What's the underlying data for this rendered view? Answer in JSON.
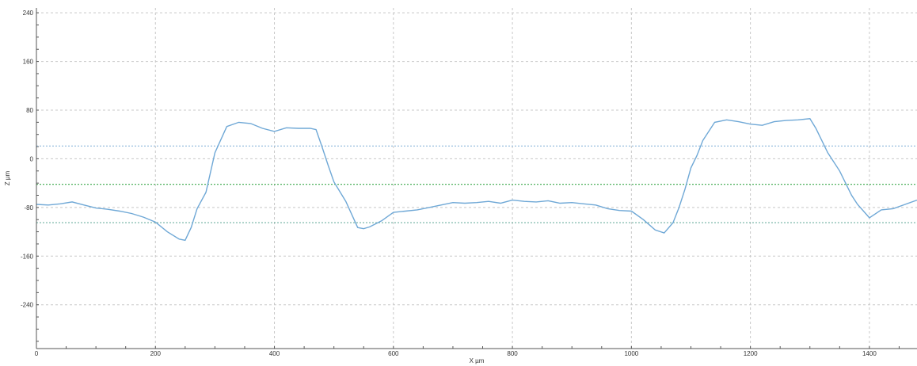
{
  "chart_data": {
    "type": "line",
    "xlabel": "X µm",
    "ylabel": "Z µm",
    "xlim": [
      0,
      1480
    ],
    "ylim": [
      -312,
      248
    ],
    "x_ticks": [
      0,
      200,
      400,
      600,
      800,
      1000,
      1200,
      1400
    ],
    "y_ticks": [
      240,
      160,
      80,
      0,
      -80,
      -160,
      -240
    ],
    "grid": true,
    "colors": {
      "profile": "#6fa8d6",
      "upper_ref": "#8fb8dc",
      "mid_ref": "#3aa84a",
      "lower_ref": "#6fb0a0",
      "grid": "#c8c8c8",
      "axis": "#555555"
    },
    "reference_lines": [
      {
        "y": 21,
        "color": "#8fb8dc"
      },
      {
        "y": -42,
        "color": "#3aa84a"
      },
      {
        "y": -105,
        "color": "#6fb0a0"
      }
    ],
    "series": [
      {
        "x": [
          0,
          20,
          40,
          60,
          80,
          100,
          120,
          140,
          160,
          180,
          200,
          220,
          240,
          250,
          260,
          270,
          285,
          300,
          320,
          340,
          360,
          380,
          400,
          420,
          440,
          460,
          470,
          480,
          490,
          500,
          520,
          540,
          550,
          560,
          580,
          600,
          620,
          640,
          660,
          680,
          700,
          720,
          740,
          760,
          780,
          800,
          820,
          840,
          860,
          880,
          900,
          920,
          940,
          960,
          980,
          1000,
          1020,
          1040,
          1055,
          1070,
          1080,
          1090,
          1100,
          1110,
          1120,
          1140,
          1160,
          1180,
          1200,
          1220,
          1240,
          1260,
          1280,
          1300,
          1310,
          1330,
          1350,
          1370,
          1380,
          1400,
          1420,
          1440,
          1460,
          1480
        ],
        "values": [
          -75,
          -76,
          -74,
          -71,
          -76,
          -81,
          -83,
          -86,
          -90,
          -96,
          -104,
          -120,
          -132,
          -134,
          -113,
          -82,
          -55,
          10,
          53,
          60,
          58,
          50,
          45,
          51,
          50,
          50,
          48,
          20,
          -10,
          -38,
          -70,
          -113,
          -115,
          -112,
          -102,
          -88,
          -86,
          -84,
          -80,
          -76,
          -72,
          -73,
          -72,
          -70,
          -73,
          -68,
          -70,
          -71,
          -69,
          -73,
          -72,
          -74,
          -76,
          -82,
          -85,
          -86,
          -100,
          -117,
          -122,
          -105,
          -80,
          -50,
          -15,
          5,
          30,
          60,
          64,
          61,
          57,
          55,
          61,
          63,
          64,
          66,
          50,
          10,
          -20,
          -60,
          -75,
          -97,
          -84,
          -82,
          -75,
          -68
        ]
      }
    ]
  }
}
